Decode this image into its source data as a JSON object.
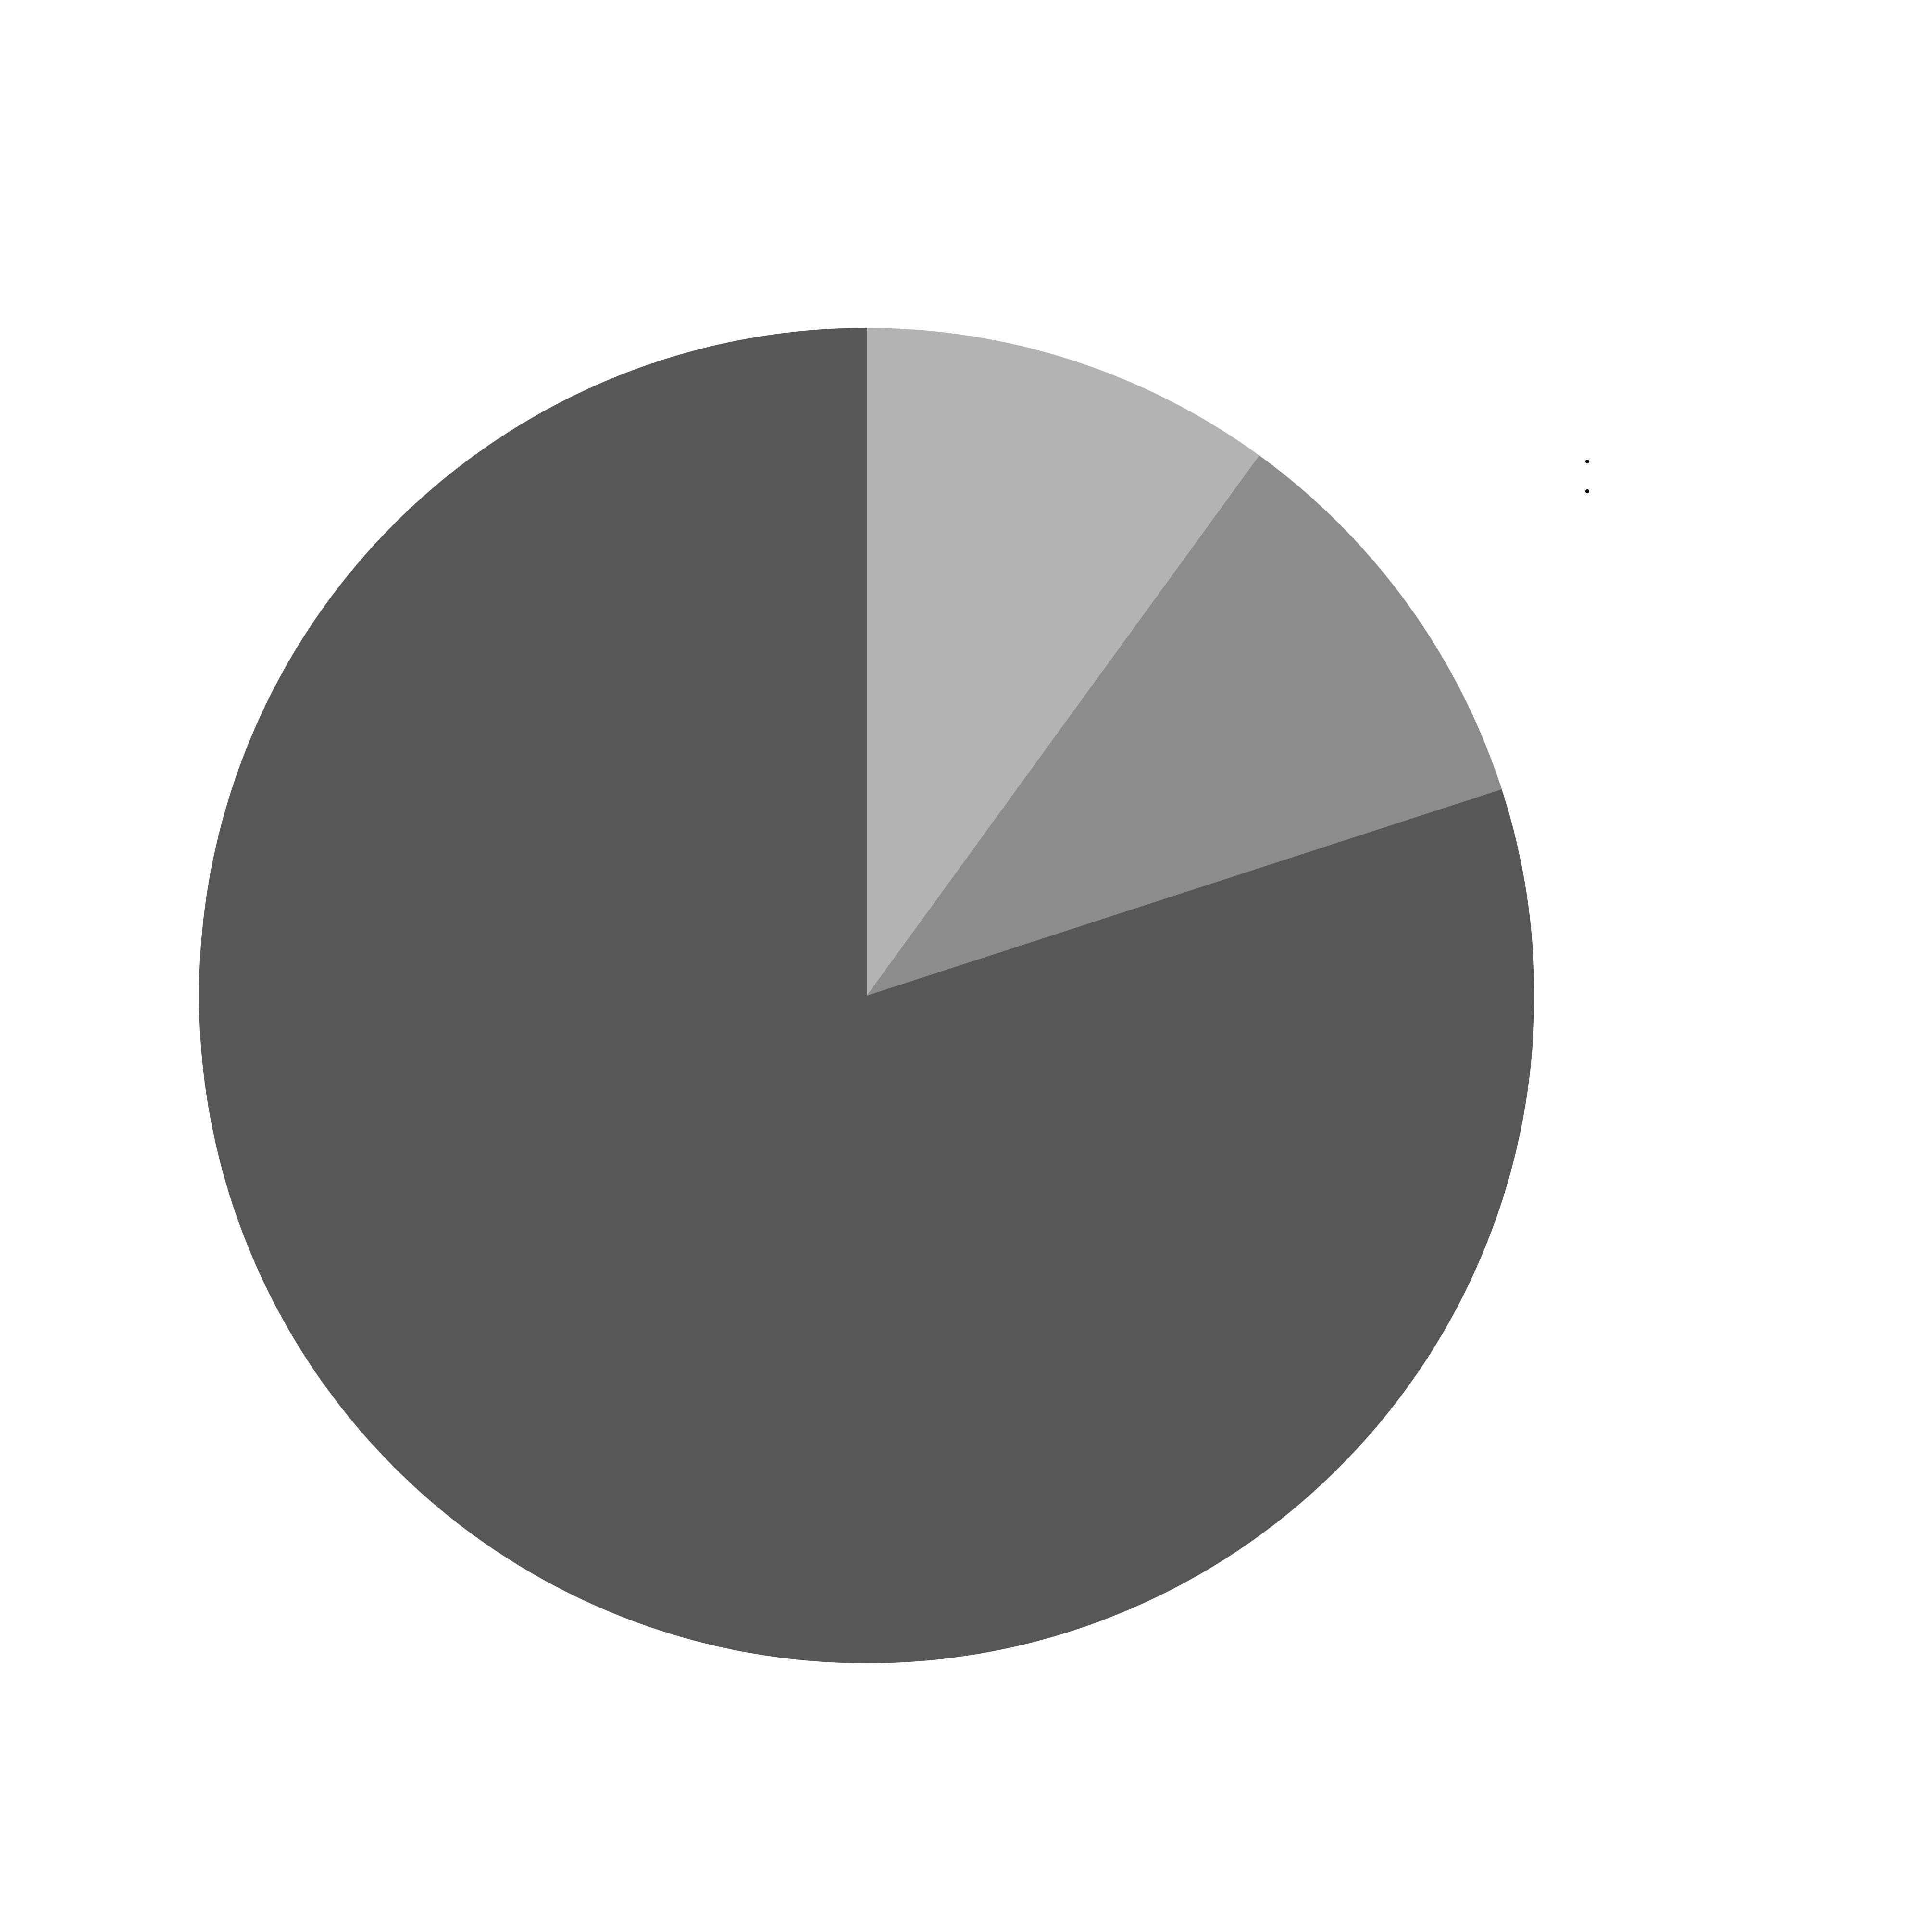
{
  "chart_data": {
    "type": "pie",
    "start_angle": "top, clockwise",
    "slices": [
      {
        "value": 10,
        "color": "#b3b3b3"
      },
      {
        "value": 10,
        "color": "#8c8c8c"
      },
      {
        "value": 80,
        "color": "#575757"
      }
    ],
    "legend": {
      "placement": "top-right",
      "entries": [
        {
          "label": "",
          "color": "#b3b3b3"
        },
        {
          "label": "",
          "color": "#8c8c8c"
        }
      ]
    },
    "title": "",
    "data_labels": false
  }
}
